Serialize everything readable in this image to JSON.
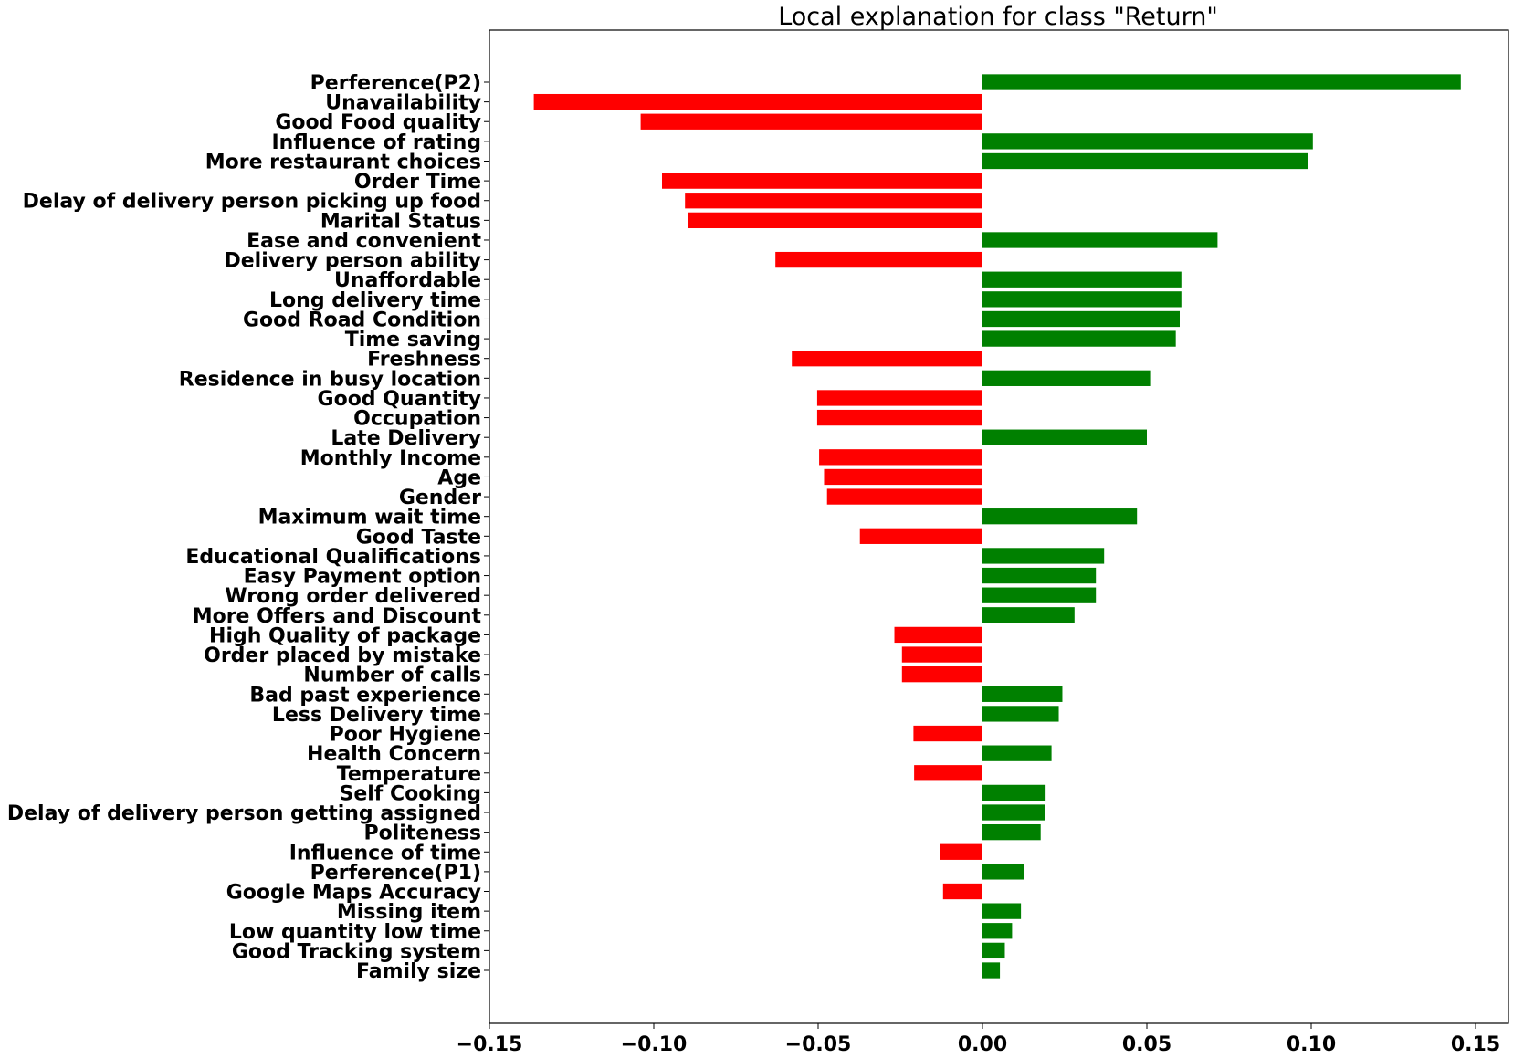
{
  "chart_data": {
    "type": "bar",
    "orientation": "horizontal",
    "title": "Local explanation for class \"Return\"",
    "xlabel": "",
    "ylabel": "",
    "xlim": [
      -0.15,
      0.16
    ],
    "xticks": [
      -0.15,
      -0.1,
      -0.05,
      0.0,
      0.05,
      0.1,
      0.15
    ],
    "xtick_labels": [
      "−0.15",
      "−0.10",
      "−0.05",
      "0.00",
      "0.05",
      "0.10",
      "0.15"
    ],
    "grid": false,
    "legend": "none",
    "colors": {
      "positive": "#008000",
      "negative": "#ff0000"
    },
    "categories": [
      "Perference(P2)",
      "Unavailability",
      "Good Food quality",
      "Influence of rating",
      "More restaurant choices",
      "Order Time",
      "Delay of delivery person picking up food",
      "Marital Status",
      "Ease and convenient",
      "Delivery person ability",
      "Unaffordable",
      "Long delivery time",
      "Good Road Condition",
      "Time saving",
      "Freshness ",
      "Residence in busy location",
      "Good Quantity",
      "Occupation",
      "Late Delivery",
      "Monthly Income",
      "Age",
      "Gender",
      "Maximum wait time",
      "Good Taste ",
      "Educational Qualifications",
      "Easy Payment option",
      "Wrong order delivered",
      "More Offers and Discount",
      "High Quality of package",
      "Order placed by mistake",
      "Number of calls",
      "Bad past experience",
      "Less Delivery time",
      "Poor Hygiene",
      "Health Concern",
      "Temperature",
      "Self Cooking",
      "Delay of delivery person getting assigned",
      "Politeness",
      "Influence of time",
      "Perference(P1)",
      "Google Maps Accuracy",
      "Missing item",
      "Low quantity low time",
      "Good Tracking system",
      "Family size"
    ],
    "values": [
      0.1455,
      -0.1365,
      -0.104,
      0.1005,
      0.099,
      -0.0975,
      -0.0905,
      -0.0895,
      0.0715,
      -0.063,
      0.0605,
      0.0605,
      0.06,
      0.0588,
      -0.058,
      0.051,
      -0.0503,
      -0.0503,
      0.05,
      -0.0497,
      -0.0482,
      -0.0473,
      0.047,
      -0.0373,
      0.037,
      0.0345,
      0.0345,
      0.028,
      -0.0268,
      -0.0245,
      -0.0245,
      0.0243,
      0.0232,
      -0.021,
      0.021,
      -0.0208,
      0.0192,
      0.019,
      0.0177,
      -0.013,
      0.0125,
      -0.012,
      0.0117,
      0.009,
      0.0068,
      0.0053
    ]
  }
}
